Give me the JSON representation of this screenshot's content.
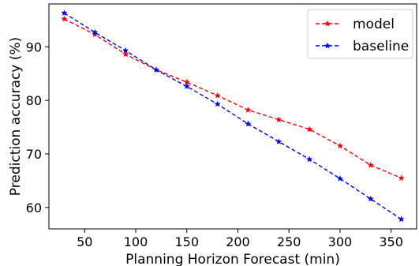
{
  "chart_data": {
    "type": "line",
    "title": "",
    "xlabel": "Planning Horizon Forecast (min)",
    "ylabel": "Prediction accuracy (%)",
    "x": [
      30,
      60,
      90,
      120,
      150,
      180,
      210,
      240,
      270,
      300,
      330,
      360
    ],
    "xlim": [
      15,
      375
    ],
    "ylim": [
      56,
      98
    ],
    "xticks": [
      50,
      100,
      150,
      200,
      250,
      300,
      350
    ],
    "yticks": [
      60,
      70,
      80,
      90
    ],
    "grid": false,
    "legend_position": "top-right",
    "series": [
      {
        "name": "model",
        "color": "#ff0000",
        "line_style": "dashed",
        "marker": "star",
        "values": [
          95.2,
          92.3,
          88.6,
          85.7,
          83.4,
          80.9,
          78.2,
          76.4,
          74.6,
          71.5,
          67.9,
          65.5
        ]
      },
      {
        "name": "baseline",
        "color": "#0000ff",
        "line_style": "dashed",
        "marker": "star",
        "values": [
          96.3,
          92.7,
          89.3,
          85.7,
          82.6,
          79.3,
          75.6,
          72.3,
          69.0,
          65.4,
          61.6,
          57.8
        ]
      }
    ]
  }
}
